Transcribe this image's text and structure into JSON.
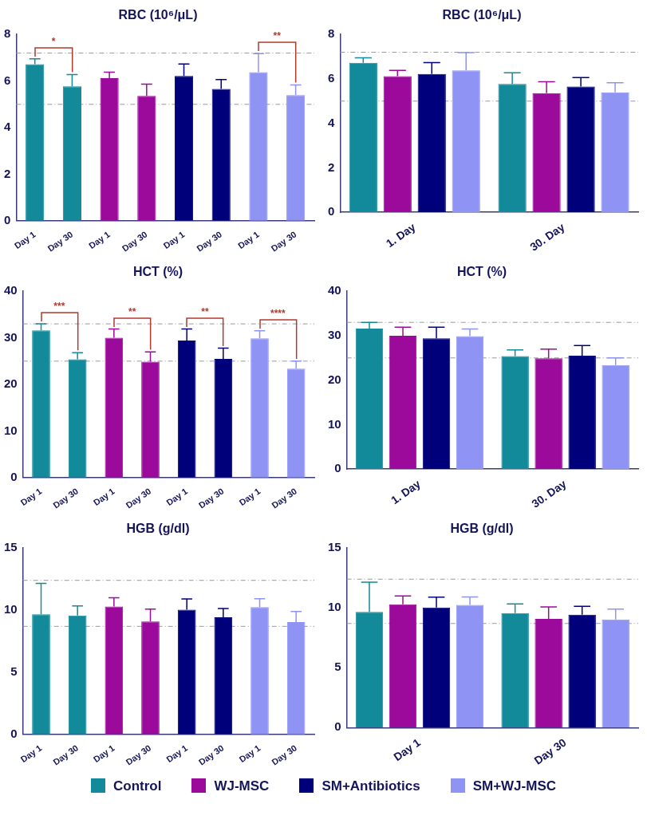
{
  "chart_data": [
    {
      "type": "bar",
      "title": "RBC (10⁶/μL)",
      "categories": [
        "Day 1",
        "Day 30",
        "Day 1",
        "Day 30",
        "Day 1",
        "Day 30",
        "Day 1",
        "Day 30"
      ],
      "values": [
        6.72,
        5.77,
        6.12,
        5.36,
        6.22,
        5.66,
        6.38,
        5.4
      ],
      "errors": [
        [
          6.72,
          6.95
        ],
        [
          5.77,
          6.28
        ],
        [
          6.12,
          6.38
        ],
        [
          5.36,
          5.87
        ],
        [
          6.22,
          6.73
        ],
        [
          5.66,
          6.06
        ],
        [
          6.38,
          7.18
        ],
        [
          5.4,
          5.83
        ]
      ],
      "colors": [
        "#138a99",
        "#138a99",
        "#9b0a9b",
        "#9b0a9b",
        "#00007a",
        "#00007a",
        "#8f94f4",
        "#8f94f4"
      ],
      "ylim": [
        0,
        8
      ],
      "yticks": [
        0,
        2,
        4,
        6,
        8
      ],
      "ref_lines": [
        {
          "axis": "y",
          "value": 7.2,
          "color": "#9a9a9a",
          "line_style": "dashed"
        },
        {
          "axis": "y",
          "value": 5.0,
          "color": "#9a9a9a",
          "line_style": "dashed"
        }
      ],
      "annotations": [
        "*",
        "**"
      ]
    },
    {
      "type": "bar",
      "title": "RBC (10⁶/μL)",
      "categories": [
        "1. Day",
        "30. Day"
      ],
      "series": [
        {
          "color": "#138a99",
          "values": [
            6.72,
            5.77
          ],
          "errors": [
            [
              6.72,
              6.95
            ],
            [
              5.77,
              6.28
            ]
          ]
        },
        {
          "color": "#9b0a9b",
          "values": [
            6.12,
            5.36
          ],
          "errors": [
            [
              6.12,
              6.38
            ],
            [
              5.36,
              5.87
            ]
          ]
        },
        {
          "color": "#00007a",
          "values": [
            6.22,
            5.66
          ],
          "errors": [
            [
              6.22,
              6.73
            ],
            [
              5.66,
              6.06
            ]
          ]
        },
        {
          "color": "#8f94f4",
          "values": [
            6.38,
            5.4
          ],
          "errors": [
            [
              6.38,
              7.18
            ],
            [
              5.4,
              5.83
            ]
          ]
        }
      ],
      "ylim": [
        0,
        8
      ],
      "yticks": [
        0,
        2,
        4,
        6,
        8
      ],
      "ref_lines": [
        {
          "axis": "y",
          "value": 7.2,
          "color": "#9a9a9a",
          "line_style": "dashed"
        },
        {
          "axis": "y",
          "value": 5.0,
          "color": "#9a9a9a",
          "line_style": "dashed"
        }
      ]
    },
    {
      "type": "bar",
      "title": "HCT (%)",
      "categories": [
        "Day 1",
        "Day 30",
        "Day 1",
        "Day 30",
        "Day 1",
        "Day 30",
        "Day 1",
        "Day 30"
      ],
      "values": [
        31.6,
        25.4,
        30.0,
        24.9,
        29.4,
        25.5,
        29.9,
        23.4
      ],
      "errors": [
        [
          31.6,
          33.0
        ],
        [
          25.4,
          26.8
        ],
        [
          30.0,
          31.9
        ],
        [
          24.9,
          27.0
        ],
        [
          29.4,
          31.9
        ],
        [
          25.5,
          27.8
        ],
        [
          29.9,
          31.5
        ],
        [
          23.4,
          25.0
        ]
      ],
      "colors": [
        "#138a99",
        "#138a99",
        "#9b0a9b",
        "#9b0a9b",
        "#00007a",
        "#00007a",
        "#8f94f4",
        "#8f94f4"
      ],
      "ylim": [
        0,
        40
      ],
      "yticks": [
        0,
        10,
        20,
        30,
        40
      ],
      "ref_lines": [
        {
          "axis": "y",
          "value": 33,
          "color": "#9a9a9a",
          "line_style": "dashed"
        },
        {
          "axis": "y",
          "value": 25,
          "color": "#9a9a9a",
          "line_style": "dashed"
        }
      ],
      "annotations": [
        "***",
        "**",
        "**",
        "****"
      ]
    },
    {
      "type": "bar",
      "title": "HCT (%)",
      "categories": [
        "1. Day",
        "30. Day"
      ],
      "series": [
        {
          "color": "#138a99",
          "values": [
            31.6,
            25.4
          ],
          "errors": [
            [
              31.6,
              33.0
            ],
            [
              25.4,
              26.8
            ]
          ]
        },
        {
          "color": "#9b0a9b",
          "values": [
            30.0,
            24.9
          ],
          "errors": [
            [
              30.0,
              31.9
            ],
            [
              24.9,
              27.0
            ]
          ]
        },
        {
          "color": "#00007a",
          "values": [
            29.4,
            25.5
          ],
          "errors": [
            [
              29.4,
              31.9
            ],
            [
              25.5,
              27.8
            ]
          ]
        },
        {
          "color": "#8f94f4",
          "values": [
            29.9,
            23.4
          ],
          "errors": [
            [
              29.9,
              31.5
            ],
            [
              23.4,
              25.0
            ]
          ]
        }
      ],
      "ylim": [
        0,
        40
      ],
      "yticks": [
        0,
        10,
        20,
        30,
        40
      ],
      "ref_lines": [
        {
          "axis": "y",
          "value": 33,
          "color": "#9a9a9a",
          "line_style": "dashed"
        },
        {
          "axis": "y",
          "value": 25,
          "color": "#9a9a9a",
          "line_style": "dashed"
        }
      ]
    },
    {
      "type": "bar",
      "title": "HGB (g/dl)",
      "categories": [
        "Day 1",
        "Day 30",
        "Day 1",
        "Day 30",
        "Day 1",
        "Day 30",
        "Day 1",
        "Day 30"
      ],
      "values": [
        9.67,
        9.57,
        10.3,
        9.09,
        10.03,
        9.43,
        10.25,
        9.04
      ],
      "errors": [
        [
          9.67,
          12.15
        ],
        [
          9.57,
          10.34
        ],
        [
          10.3,
          11.0
        ],
        [
          9.09,
          10.08
        ],
        [
          10.03,
          10.9
        ],
        [
          9.43,
          10.13
        ],
        [
          10.25,
          10.92
        ],
        [
          9.04,
          9.9
        ]
      ],
      "colors": [
        "#138a99",
        "#138a99",
        "#9b0a9b",
        "#9b0a9b",
        "#00007a",
        "#00007a",
        "#8f94f4",
        "#8f94f4"
      ],
      "ylim": [
        0,
        15
      ],
      "yticks": [
        0,
        5,
        10,
        15
      ],
      "ref_lines": [
        {
          "axis": "y",
          "value": 12.4,
          "color": "#9a9a9a",
          "line_style": "dashed"
        },
        {
          "axis": "y",
          "value": 8.7,
          "color": "#9a9a9a",
          "line_style": "dashed"
        }
      ]
    },
    {
      "type": "bar",
      "title": "HGB (g/dl)",
      "categories": [
        "Day 1",
        "Day 30"
      ],
      "series": [
        {
          "name": "Control",
          "color": "#138a99",
          "values": [
            9.67,
            9.57
          ],
          "errors": [
            [
              9.67,
              12.15
            ],
            [
              9.57,
              10.34
            ]
          ]
        },
        {
          "name": "WJ-MSC",
          "color": "#9b0a9b",
          "values": [
            10.3,
            9.09
          ],
          "errors": [
            [
              10.3,
              11.0
            ],
            [
              9.09,
              10.08
            ]
          ]
        },
        {
          "name": "SM+Antibiotics",
          "color": "#00007a",
          "values": [
            10.03,
            9.43
          ],
          "errors": [
            [
              10.03,
              10.9
            ],
            [
              9.43,
              10.13
            ]
          ]
        },
        {
          "name": "SM+WJ-MSC",
          "color": "#8f94f4",
          "values": [
            10.25,
            9.04
          ],
          "errors": [
            [
              10.25,
              10.92
            ],
            [
              9.04,
              9.9
            ]
          ]
        }
      ],
      "ylim": [
        0,
        15
      ],
      "yticks": [
        0,
        5,
        10,
        15
      ],
      "ref_lines": [
        {
          "axis": "y",
          "value": 12.4,
          "color": "#9a9a9a",
          "line_style": "dashed"
        },
        {
          "axis": "y",
          "value": 8.7,
          "color": "#9a9a9a",
          "line_style": "dashed"
        }
      ],
      "legend": "bottom"
    }
  ]
}
